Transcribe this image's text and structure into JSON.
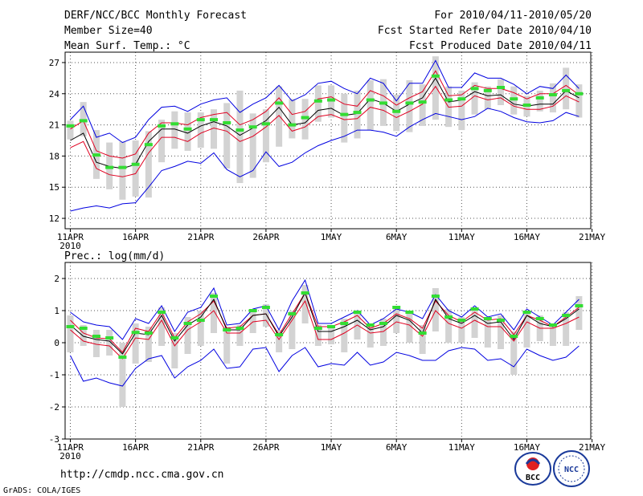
{
  "header": {
    "title": "DERF/NCC/BCC Monthly Forecast",
    "member_size": "Member Size=40",
    "for_range": "For 2010/04/11-2010/05/20",
    "started_refer": "Fcst Started Refer Date 2010/04/10",
    "produced": "Fcst Produced Date 2010/04/11"
  },
  "footer": {
    "url": "http://cmdp.ncc.cma.gov.cn",
    "grads_credit": "GrADS: COLA/IGES",
    "logo_left_text": "BCC",
    "logo_right_text": "NCC"
  },
  "colors": {
    "mean": "#000000",
    "inner": "#e00020",
    "outer": "#0000e0",
    "bar": "#d3d3d3",
    "marker": "#33dd33",
    "grid": "#555555"
  },
  "chart_data": [
    {
      "type": "line",
      "title": "Mean Surf. Temp.: °C",
      "x_tick_labels": [
        "11APR",
        "16APR",
        "21APR",
        "26APR",
        "1MAY",
        "6MAY",
        "11MAY",
        "16MAY",
        "21MAY"
      ],
      "x_tick_days": [
        0,
        5,
        10,
        15,
        20,
        25,
        30,
        35,
        40
      ],
      "x_sublabel": "2010",
      "ylim": [
        11,
        28
      ],
      "y_ticks": [
        12,
        15,
        18,
        21,
        24,
        27
      ],
      "x": [
        0,
        1,
        2,
        3,
        4,
        5,
        6,
        7,
        8,
        9,
        10,
        11,
        12,
        13,
        14,
        15,
        16,
        17,
        18,
        19,
        20,
        21,
        22,
        23,
        24,
        25,
        26,
        27,
        28,
        29,
        30,
        31,
        32,
        33,
        34,
        35,
        36,
        37,
        38,
        39
      ],
      "series": [
        {
          "name": "upper",
          "values": [
            21.5,
            22.8,
            19.8,
            20.2,
            19.3,
            19.8,
            21.5,
            22.7,
            22.8,
            22.3,
            23.0,
            23.4,
            23.6,
            22.2,
            23.0,
            23.6,
            24.8,
            23.3,
            23.9,
            25.0,
            25.2,
            24.5,
            24.0,
            25.5,
            25.0,
            23.3,
            25.0,
            25.0,
            27.2,
            24.6,
            24.6,
            26.0,
            25.5,
            25.5,
            24.9,
            24.0,
            24.7,
            24.5,
            25.8,
            24.5
          ]
        },
        {
          "name": "inner_upper",
          "values": [
            20.6,
            21.4,
            18.5,
            18.0,
            17.8,
            18.2,
            20.2,
            21.2,
            21.2,
            21.0,
            21.7,
            22.0,
            22.2,
            21.0,
            21.5,
            22.3,
            23.6,
            22.0,
            22.3,
            23.5,
            23.7,
            23.0,
            22.8,
            24.3,
            23.8,
            22.9,
            23.6,
            24.2,
            26.2,
            23.8,
            23.9,
            24.8,
            24.5,
            24.5,
            24.1,
            23.5,
            24.0,
            24.0,
            24.8,
            23.9
          ]
        },
        {
          "name": "mean",
          "values": [
            19.5,
            20.2,
            17.4,
            17.0,
            16.8,
            17.2,
            19.4,
            20.6,
            20.6,
            20.2,
            20.9,
            21.3,
            20.9,
            20.0,
            20.7,
            21.4,
            22.7,
            21.0,
            21.2,
            22.4,
            22.6,
            21.9,
            22.1,
            23.5,
            23.1,
            22.3,
            23.0,
            23.6,
            25.5,
            23.2,
            23.4,
            24.2,
            23.8,
            23.9,
            23.0,
            22.8,
            23.0,
            23.0,
            24.3,
            23.6
          ]
        },
        {
          "name": "inner_lower",
          "values": [
            18.8,
            19.4,
            16.8,
            16.2,
            16.0,
            16.3,
            18.3,
            19.8,
            19.8,
            19.4,
            20.2,
            20.7,
            20.4,
            19.4,
            19.9,
            20.8,
            21.9,
            20.4,
            20.8,
            21.8,
            22.0,
            21.5,
            21.6,
            22.7,
            22.4,
            21.7,
            22.3,
            23.0,
            24.7,
            22.7,
            22.8,
            23.8,
            23.4,
            23.6,
            22.8,
            22.5,
            22.5,
            22.8,
            23.8,
            23.2
          ]
        },
        {
          "name": "lower",
          "values": [
            12.7,
            13.0,
            13.2,
            13.0,
            13.4,
            13.5,
            15.0,
            16.6,
            17.0,
            17.5,
            17.3,
            18.3,
            16.7,
            16.0,
            16.6,
            18.4,
            17.0,
            17.4,
            18.3,
            19.0,
            19.5,
            19.9,
            20.5,
            20.5,
            20.3,
            19.9,
            20.8,
            21.5,
            22.1,
            21.8,
            21.5,
            21.8,
            22.6,
            22.3,
            21.7,
            21.3,
            21.2,
            21.4,
            22.2,
            21.8
          ]
        },
        {
          "name": "bar_low",
          "values": [
            19.6,
            19.9,
            15.8,
            14.8,
            13.8,
            14.1,
            14.0,
            17.4,
            18.7,
            18.5,
            18.8,
            18.7,
            16.8,
            15.4,
            15.9,
            17.4,
            18.9,
            19.7,
            19.6,
            21.3,
            21.7,
            19.3,
            19.7,
            20.5,
            20.9,
            20.4,
            20.3,
            20.9,
            21.5,
            20.8,
            20.5,
            22.0,
            22.5,
            22.9,
            22.0,
            21.8,
            22.3,
            22.2,
            22.5,
            21.7
          ]
        },
        {
          "name": "bar_high",
          "values": [
            21.4,
            23.2,
            20.5,
            19.3,
            19.4,
            19.5,
            20.4,
            21.5,
            22.3,
            22.2,
            22.2,
            22.5,
            23.1,
            24.3,
            22.1,
            22.5,
            24.7,
            23.5,
            23.5,
            24.8,
            24.8,
            24.0,
            24.3,
            25.3,
            25.4,
            23.9,
            25.3,
            24.9,
            27.6,
            24.7,
            24.3,
            25.1,
            24.7,
            25.4,
            24.7,
            23.8,
            24.3,
            25.0,
            26.5,
            24.9
          ]
        },
        {
          "name": "observed_marker",
          "values": [
            20.9,
            21.4,
            18.1,
            16.9,
            16.9,
            17.2,
            19.1,
            20.9,
            21.1,
            20.6,
            21.5,
            21.5,
            21.2,
            20.5,
            20.8,
            21.1,
            23.1,
            21.0,
            21.7,
            23.3,
            23.4,
            22.0,
            22.2,
            23.4,
            23.1,
            22.3,
            23.1,
            23.2,
            25.7,
            23.4,
            23.5,
            24.5,
            24.3,
            24.6,
            23.5,
            22.9,
            23.6,
            23.9,
            24.3,
            24.0
          ]
        }
      ]
    },
    {
      "type": "line",
      "title": "Prec.: log(mm/d)",
      "x_tick_labels": [
        "11APR",
        "16APR",
        "21APR",
        "26APR",
        "1MAY",
        "6MAY",
        "11MAY",
        "16MAY",
        "21MAY"
      ],
      "x_tick_days": [
        0,
        5,
        10,
        15,
        20,
        25,
        30,
        35,
        40
      ],
      "x_sublabel": "2010",
      "ylim": [
        -3,
        2.5
      ],
      "y_ticks": [
        -3,
        -2,
        -1,
        0,
        1,
        2
      ],
      "x": [
        0,
        1,
        2,
        3,
        4,
        5,
        6,
        7,
        8,
        9,
        10,
        11,
        12,
        13,
        14,
        15,
        16,
        17,
        18,
        19,
        20,
        21,
        22,
        23,
        24,
        25,
        26,
        27,
        28,
        29,
        30,
        31,
        32,
        33,
        34,
        35,
        36,
        37,
        38,
        39
      ],
      "series": [
        {
          "name": "upper",
          "values": [
            0.95,
            0.65,
            0.55,
            0.5,
            0.1,
            0.75,
            0.6,
            1.15,
            0.35,
            0.95,
            1.1,
            1.7,
            0.55,
            0.6,
            1.05,
            1.15,
            0.4,
            1.3,
            1.95,
            0.6,
            0.6,
            0.8,
            1.0,
            0.55,
            0.75,
            1.05,
            0.95,
            0.75,
            1.5,
            1.0,
            0.8,
            1.15,
            0.8,
            0.9,
            0.4,
            1.05,
            0.8,
            0.55,
            0.95,
            1.35
          ]
        },
        {
          "name": "inner_upper",
          "values": [
            0.7,
            0.3,
            0.15,
            0.12,
            -0.3,
            0.45,
            0.35,
            0.95,
            0.15,
            0.65,
            0.9,
            1.3,
            0.45,
            0.5,
            0.85,
            0.9,
            0.25,
            0.9,
            1.55,
            0.5,
            0.5,
            0.65,
            0.85,
            0.45,
            0.6,
            0.9,
            0.75,
            0.45,
            1.3,
            0.85,
            0.65,
            0.95,
            0.7,
            0.75,
            0.25,
            0.85,
            0.7,
            0.5,
            0.8,
            1.1
          ]
        },
        {
          "name": "mean",
          "values": [
            0.55,
            0.2,
            0.1,
            0.05,
            -0.35,
            0.3,
            0.25,
            0.85,
            0.05,
            0.55,
            0.8,
            1.35,
            0.4,
            0.4,
            0.85,
            0.9,
            0.2,
            0.8,
            1.55,
            0.35,
            0.35,
            0.5,
            0.7,
            0.4,
            0.5,
            0.85,
            0.7,
            0.3,
            1.35,
            0.75,
            0.6,
            0.85,
            0.6,
            0.65,
            0.1,
            0.85,
            0.6,
            0.5,
            0.75,
            1.05
          ]
        },
        {
          "name": "inner_lower",
          "values": [
            0.4,
            0.05,
            -0.05,
            -0.1,
            -0.5,
            0.15,
            0.1,
            0.7,
            -0.1,
            0.4,
            0.65,
            1.0,
            0.3,
            0.3,
            0.65,
            0.7,
            0.1,
            0.7,
            1.3,
            0.1,
            0.1,
            0.3,
            0.55,
            0.3,
            0.35,
            0.65,
            0.55,
            0.2,
            1.0,
            0.6,
            0.45,
            0.7,
            0.5,
            0.5,
            0.05,
            0.65,
            0.45,
            0.45,
            0.6,
            0.8
          ]
        },
        {
          "name": "lower",
          "values": [
            -0.4,
            -1.2,
            -1.1,
            -1.25,
            -1.35,
            -0.8,
            -0.5,
            -0.4,
            -1.1,
            -0.75,
            -0.55,
            -0.2,
            -0.8,
            -0.75,
            -0.2,
            -0.15,
            -0.9,
            -0.4,
            -0.15,
            -0.75,
            -0.65,
            -0.7,
            -0.3,
            -0.7,
            -0.6,
            -0.3,
            -0.4,
            -0.55,
            -0.55,
            -0.25,
            -0.15,
            -0.2,
            -0.55,
            -0.5,
            -0.75,
            -0.2,
            -0.4,
            -0.55,
            -0.45,
            -0.1
          ]
        },
        {
          "name": "bar_low",
          "values": [
            -0.3,
            -0.1,
            -0.45,
            -0.4,
            -2.0,
            -0.65,
            -0.6,
            -0.1,
            -0.8,
            -0.35,
            -0.1,
            0.3,
            -0.65,
            -0.1,
            0.3,
            0.5,
            -0.3,
            -0.2,
            0.6,
            -0.1,
            -0.05,
            -0.3,
            0.1,
            -0.15,
            -0.1,
            0.3,
            0.0,
            -0.35,
            0.35,
            0.0,
            0.0,
            0.15,
            -0.15,
            -0.2,
            -1.0,
            -0.15,
            0.05,
            -0.1,
            -0.1,
            0.4
          ]
        },
        {
          "name": "bar_high",
          "values": [
            0.85,
            0.55,
            0.4,
            0.4,
            0.0,
            0.6,
            0.5,
            1.1,
            0.3,
            0.8,
            1.0,
            1.55,
            0.5,
            0.55,
            1.05,
            1.2,
            0.4,
            1.0,
            1.8,
            0.55,
            0.55,
            0.75,
            0.95,
            0.55,
            0.75,
            1.05,
            0.95,
            0.55,
            1.7,
            1.05,
            0.8,
            1.0,
            0.8,
            0.85,
            0.35,
            1.0,
            0.85,
            0.6,
            0.95,
            1.45
          ]
        },
        {
          "name": "observed_marker",
          "values": [
            0.5,
            0.45,
            0.2,
            0.15,
            -0.45,
            0.32,
            0.3,
            0.95,
            0.15,
            0.6,
            0.7,
            1.45,
            0.4,
            0.45,
            1.0,
            1.1,
            0.25,
            0.9,
            1.55,
            0.45,
            0.5,
            0.6,
            0.95,
            0.55,
            0.6,
            1.1,
            0.95,
            0.3,
            1.45,
            0.8,
            0.7,
            1.05,
            0.75,
            0.7,
            0.2,
            0.95,
            0.75,
            0.55,
            0.85,
            1.15
          ]
        }
      ]
    }
  ]
}
